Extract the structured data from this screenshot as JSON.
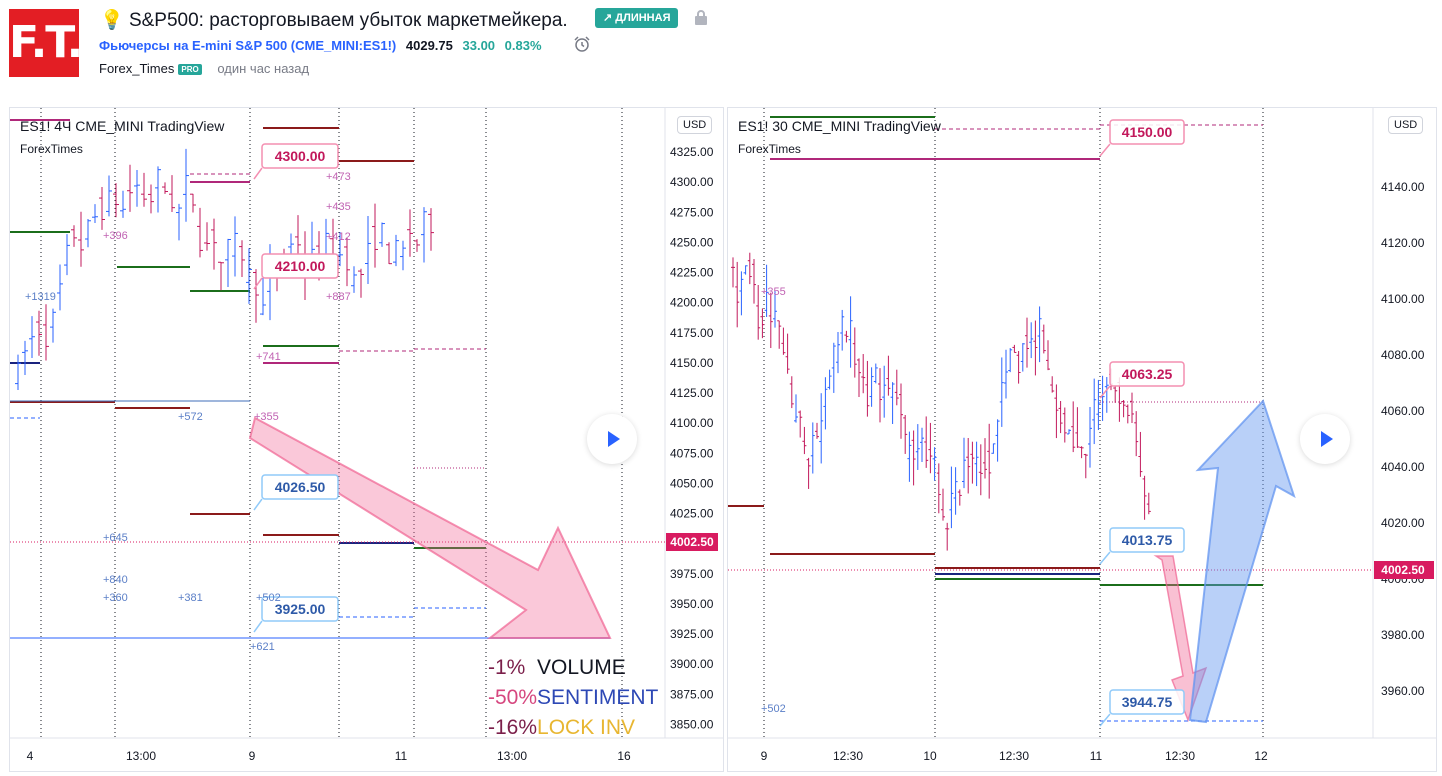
{
  "header": {
    "logo_text": "F.T.",
    "idea_icon": "lightbulb-icon",
    "title": "S&P500: расторговываем убыток маркетмейкера.",
    "direction_badge": "↗ ДЛИННАЯ",
    "lock_icon": "lock-icon",
    "symbol_name": "Фьючерсы на E-mini S&P 500 (CME_MINI:ES1!)",
    "price": "4029.75",
    "change": "33.00",
    "change_pct": "0.83%",
    "alarm_icon": "alarm-clock-icon",
    "author": "Forex_Times",
    "author_badge": "PRO",
    "published": "один час назад"
  },
  "left_chart": {
    "title": "ES1!  4Ч  CME_MINI  TradingView",
    "subtitle": "ForexTimes",
    "currency": "USD",
    "price_label": "4002.50",
    "y_ticks": [
      "4325.00",
      "4300.00",
      "4275.00",
      "4250.00",
      "4225.00",
      "4200.00",
      "4175.00",
      "4150.00",
      "4125.00",
      "4100.00",
      "4075.00",
      "4050.00",
      "4025.00",
      "4000.00",
      "3975.00",
      "3950.00",
      "3925.00",
      "3900.00",
      "3875.00",
      "3850.00"
    ],
    "x_ticks": [
      "4",
      "13:00",
      "9",
      "11",
      "13:00",
      "16"
    ],
    "level_boxes": [
      "4300.00",
      "4210.00",
      "4026.50",
      "3925.00"
    ],
    "annotations": [
      "+473",
      "+435",
      "+412",
      "+887",
      "+396",
      "+1319",
      "+741",
      "+355",
      "+572",
      "+645",
      "+840",
      "+360",
      "+381",
      "+502",
      "+621"
    ],
    "legend": [
      {
        "pct": "-1%",
        "label": "VOLUME",
        "pct_color": "#7b1f4a",
        "label_color": "#131722"
      },
      {
        "pct": "-50%",
        "label": "SENTIMENT",
        "pct_color": "#d6477f",
        "label_color": "#2d48b5"
      },
      {
        "pct": "-16%",
        "label": "LOCK INV",
        "pct_color": "#7b1f4a",
        "label_color": "#e8b631"
      }
    ],
    "play_icon": "play-icon"
  },
  "right_chart": {
    "title": "ES1!  30  CME_MINI  TradingView",
    "subtitle": "ForexTimes",
    "currency": "USD",
    "price_label": "4002.50",
    "y_ticks": [
      "4140.00",
      "4120.00",
      "4100.00",
      "4080.00",
      "4060.00",
      "4040.00",
      "4020.00",
      "4000.00",
      "3980.00",
      "3960.00"
    ],
    "x_ticks": [
      "9",
      "12:30",
      "10",
      "12:30",
      "11",
      "12:30",
      "12"
    ],
    "level_boxes": [
      "4150.00",
      "4063.25",
      "4013.75",
      "3944.75"
    ],
    "annotations": [
      "+355",
      "+502"
    ],
    "play_icon": "play-icon"
  },
  "colors": {
    "up": "#2962ff",
    "down": "#c2185b",
    "level_red": "#8b1a1a",
    "level_green": "#1b6e1b",
    "level_magenta": "#b0287a",
    "price_tag": "#d81b60"
  }
}
